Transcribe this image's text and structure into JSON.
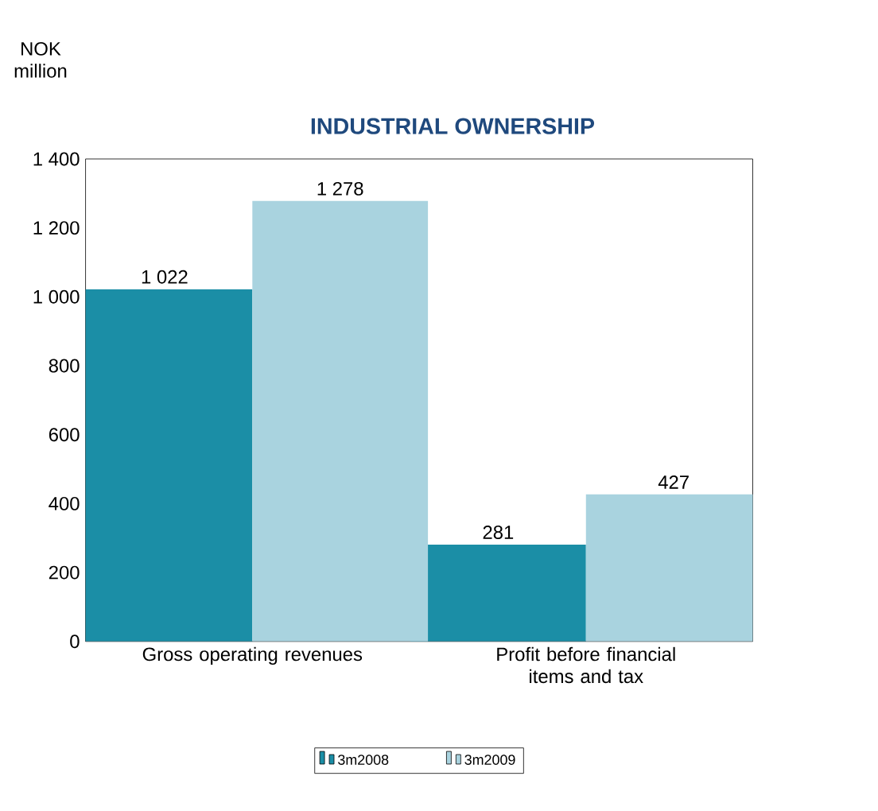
{
  "chart_data": {
    "type": "bar",
    "title": "INDUSTRIAL OWNERSHIP",
    "ylabel": "NOK million",
    "categories": [
      "Gross operating revenues",
      "Profit before financial items and tax"
    ],
    "series": [
      {
        "name": "3m2008",
        "color": "#1b8ea6",
        "values": [
          1022,
          281
        ],
        "value_labels": [
          "1 022",
          "281"
        ]
      },
      {
        "name": "3m2009",
        "color": "#a9d3df",
        "values": [
          1278,
          427
        ],
        "value_labels": [
          "1 278",
          "427"
        ]
      }
    ],
    "ylim": [
      0,
      1400
    ],
    "yticks": [
      0,
      200,
      400,
      600,
      800,
      {
        "value": 1000,
        "label": "1 000"
      },
      {
        "value": 1200,
        "label": "1 200"
      },
      {
        "value": 1400,
        "label": "1 400"
      }
    ],
    "grid": false,
    "legend": "bottom"
  }
}
